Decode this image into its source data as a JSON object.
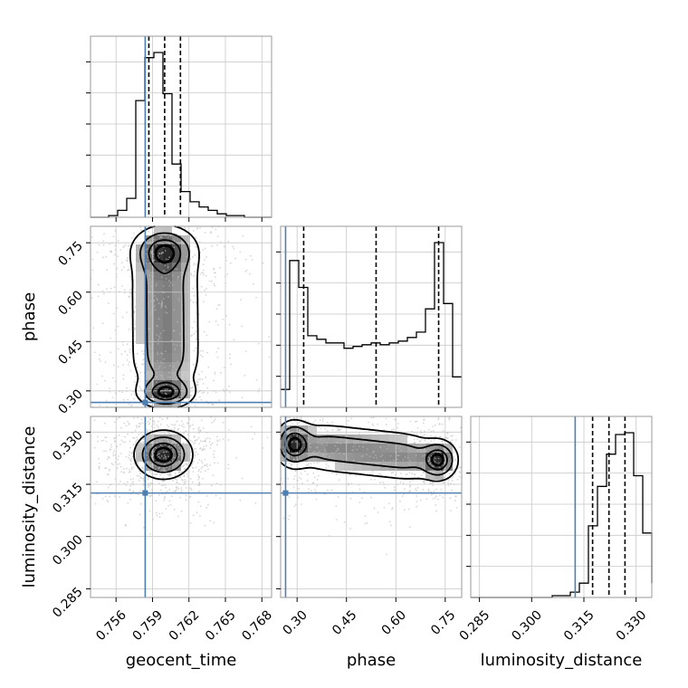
{
  "chart_data": {
    "type": "corner",
    "parameters": [
      "geocent_time",
      "phase",
      "luminosity_distance"
    ],
    "axis_labels": [
      "geocent_time",
      "phase",
      "luminosity_distance"
    ],
    "ranges": {
      "geocent_time": [
        0.7539,
        0.7688
      ],
      "phase": [
        0.25,
        0.8
      ],
      "luminosity_distance": [
        0.2825,
        0.3345
      ]
    },
    "ticks": {
      "geocent_time": {
        "values": [
          0.756,
          0.759,
          0.762,
          0.765,
          0.768
        ],
        "labels": [
          "0.756",
          "0.759",
          "0.762",
          "0.765",
          "0.768"
        ]
      },
      "phase": {
        "values": [
          0.3,
          0.45,
          0.6,
          0.75
        ],
        "labels": [
          "0.30",
          "0.45",
          "0.60",
          "0.75"
        ]
      },
      "luminosity_distance": {
        "values": [
          0.285,
          0.3,
          0.315,
          0.33
        ],
        "labels": [
          "0.285",
          "0.300",
          "0.315",
          "0.330"
        ]
      }
    },
    "truths": {
      "geocent_time": 0.7584,
      "phase": 0.265,
      "luminosity_distance": 0.3125
    },
    "quantiles": {
      "geocent_time": [
        0.7587,
        0.76,
        0.7613
      ],
      "phase": [
        0.32,
        0.54,
        0.73
      ],
      "luminosity_distance": [
        0.3175,
        0.3222,
        0.3268
      ]
    },
    "histograms": {
      "geocent_time": {
        "edges_start": 0.7539,
        "bin_width": 0.000745,
        "counts": [
          0,
          0,
          1,
          4,
          11,
          68,
          93,
          96,
          72,
          31,
          15,
          9,
          6,
          4,
          2,
          1,
          1,
          0,
          0,
          0
        ]
      },
      "phase": {
        "edges_start": 0.25,
        "bin_width": 0.0275,
        "counts": [
          10,
          82,
          67,
          40,
          38,
          36,
          36,
          33,
          34,
          35,
          36,
          35,
          36,
          37,
          39,
          42,
          55,
          92,
          58,
          17
        ]
      },
      "luminosity_distance": {
        "edges_start": 0.2825,
        "bin_width": 0.0026,
        "counts": [
          0,
          0,
          0,
          0,
          0,
          0,
          0,
          0,
          0,
          1,
          1,
          3,
          8,
          40,
          62,
          80,
          91,
          92,
          68,
          36,
          8
        ]
      }
    },
    "joint_modes": [
      {
        "x": "geocent_time",
        "y": "phase",
        "centers": [
          [
            0.76,
            0.725,
            0.0014,
            0.04
          ],
          [
            0.7601,
            0.295,
            0.0012,
            0.025
          ]
        ],
        "bridge": true
      },
      {
        "x": "geocent_time",
        "y": "luminosity_distance",
        "centers": [
          [
            0.7599,
            0.3235,
            0.0012,
            0.0035
          ]
        ]
      },
      {
        "x": "phase",
        "y": "luminosity_distance",
        "centers": [
          [
            0.29,
            0.3265,
            0.03,
            0.0035
          ],
          [
            0.73,
            0.322,
            0.03,
            0.003
          ]
        ],
        "bridge": true
      }
    ]
  }
}
